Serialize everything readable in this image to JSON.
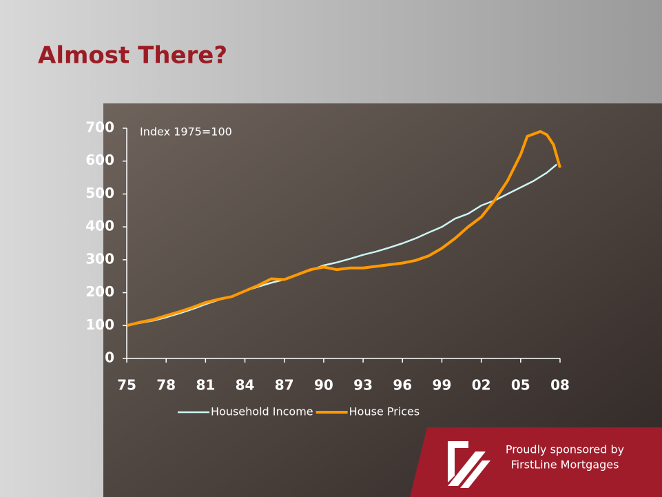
{
  "title": "Almost There?",
  "chart_data": {
    "type": "line",
    "annotation": "Index 1975=100",
    "xlim": [
      1975,
      2008
    ],
    "xticks": [
      {
        "value": 1975,
        "label": "75"
      },
      {
        "value": 1978,
        "label": "78"
      },
      {
        "value": 1981,
        "label": "81"
      },
      {
        "value": 1984,
        "label": "84"
      },
      {
        "value": 1987,
        "label": "87"
      },
      {
        "value": 1990,
        "label": "90"
      },
      {
        "value": 1993,
        "label": "93"
      },
      {
        "value": 1996,
        "label": "96"
      },
      {
        "value": 1999,
        "label": "99"
      },
      {
        "value": 2002,
        "label": "02"
      },
      {
        "value": 2005,
        "label": "05"
      },
      {
        "value": 2008,
        "label": "08"
      }
    ],
    "ylim": [
      0,
      700
    ],
    "yticks": [
      0,
      100,
      200,
      300,
      400,
      500,
      600,
      700
    ],
    "series": [
      {
        "name": "Household Income",
        "color": "#ccf5f5",
        "x": [
          1975,
          1976,
          1977,
          1978,
          1979,
          1980,
          1981,
          1982,
          1983,
          1984,
          1985,
          1986,
          1987,
          1988,
          1989,
          1990,
          1991,
          1992,
          1993,
          1994,
          1995,
          1996,
          1997,
          1998,
          1999,
          2000,
          2001,
          2002,
          2003,
          2004,
          2005,
          2006,
          2007,
          2007.75
        ],
        "values": [
          100,
          108,
          115,
          125,
          137,
          150,
          165,
          178,
          188,
          205,
          218,
          230,
          240,
          255,
          268,
          283,
          292,
          303,
          315,
          325,
          337,
          350,
          365,
          383,
          400,
          425,
          440,
          465,
          480,
          500,
          520,
          540,
          565,
          590
        ]
      },
      {
        "name": "House Prices",
        "color": "#ff9900",
        "x": [
          1975,
          1976,
          1977,
          1978,
          1979,
          1980,
          1981,
          1982,
          1983,
          1984,
          1985,
          1986,
          1987,
          1988,
          1989,
          1990,
          1991,
          1992,
          1993,
          1994,
          1995,
          1996,
          1997,
          1998,
          1999,
          2000,
          2001,
          2002,
          2003,
          2004,
          2005,
          2005.5,
          2006.5,
          2007,
          2007.5,
          2008
        ],
        "values": [
          100,
          110,
          118,
          130,
          142,
          155,
          170,
          180,
          188,
          205,
          222,
          242,
          240,
          255,
          270,
          278,
          270,
          275,
          275,
          280,
          285,
          290,
          298,
          312,
          335,
          365,
          400,
          430,
          480,
          540,
          620,
          675,
          690,
          680,
          650,
          580
        ]
      }
    ]
  },
  "sponsor": {
    "line1": "Proudly sponsored by",
    "line2": "FirstLine Mortgages"
  }
}
